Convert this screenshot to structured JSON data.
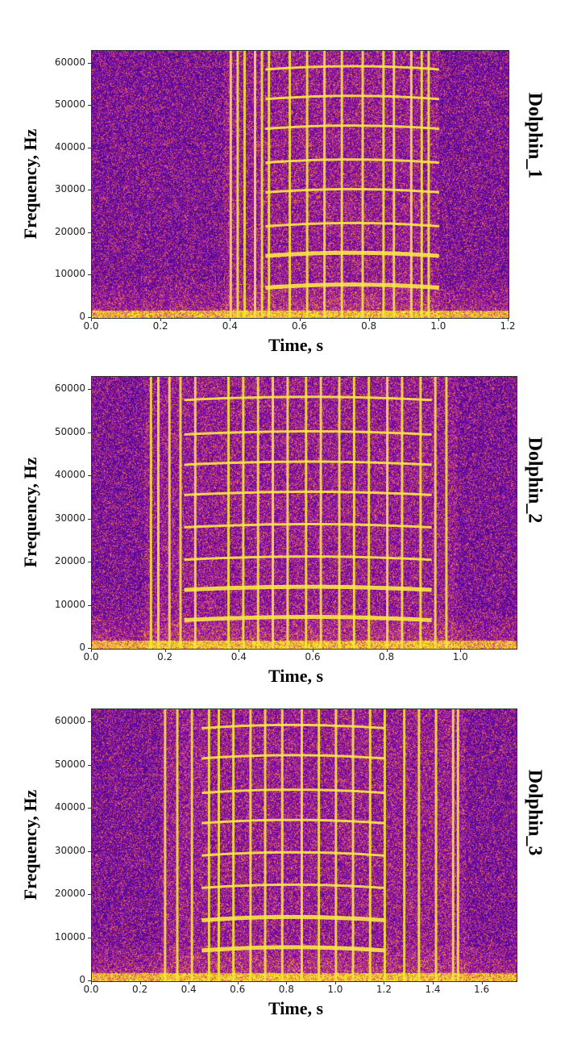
{
  "chart_data": [
    {
      "type": "heatmap",
      "title": "Dolphin_1",
      "xlabel": "Time, s",
      "ylabel": "Frequency, Hz",
      "xlim": [
        0,
        1.2
      ],
      "ylim": [
        0,
        63000
      ],
      "xticks": [
        "0.0",
        "0.2",
        "0.4",
        "0.6",
        "0.8",
        "1.0",
        "1.2"
      ],
      "yticks": [
        "0",
        "10000",
        "20000",
        "30000",
        "40000",
        "50000",
        "60000"
      ],
      "colormap": "plasma",
      "click_times": [
        0.4,
        0.42,
        0.44,
        0.47,
        0.49,
        0.51,
        0.57,
        0.62,
        0.67,
        0.72,
        0.78,
        0.84,
        0.87,
        0.92,
        0.95,
        0.97
      ],
      "harmonics_hz": [
        7500,
        15000,
        22000,
        30000,
        37000,
        45000,
        52000,
        59000
      ],
      "harmonic_span": [
        0.5,
        1.0
      ]
    },
    {
      "type": "heatmap",
      "title": "Dolphin_2",
      "xlabel": "Time, s",
      "ylabel": "Frequency, Hz",
      "xlim": [
        0,
        1.15
      ],
      "ylim": [
        0,
        63000
      ],
      "xticks": [
        "0.0",
        "0.2",
        "0.4",
        "0.6",
        "0.8",
        "1.0"
      ],
      "yticks": [
        "0",
        "10000",
        "20000",
        "30000",
        "40000",
        "50000",
        "60000"
      ],
      "colormap": "plasma",
      "click_times": [
        0.16,
        0.18,
        0.21,
        0.24,
        0.28,
        0.37,
        0.41,
        0.45,
        0.49,
        0.53,
        0.58,
        0.62,
        0.67,
        0.71,
        0.75,
        0.8,
        0.84,
        0.89,
        0.93,
        0.96
      ],
      "harmonics_hz": [
        7000,
        14000,
        21000,
        28500,
        36000,
        43000,
        50000,
        58000
      ],
      "harmonic_span": [
        0.25,
        0.92
      ]
    },
    {
      "type": "heatmap",
      "title": "Dolphin_3",
      "xlabel": "Time, s",
      "ylabel": "Frequency, Hz",
      "xlim": [
        0,
        1.74
      ],
      "ylim": [
        0,
        63000
      ],
      "xticks": [
        "0.0",
        "0.2",
        "0.4",
        "0.6",
        "0.8",
        "1.0",
        "1.2",
        "1.4",
        "1.6"
      ],
      "yticks": [
        "0",
        "10000",
        "20000",
        "30000",
        "40000",
        "50000",
        "60000"
      ],
      "colormap": "plasma",
      "click_times": [
        0.3,
        0.35,
        0.41,
        0.48,
        0.52,
        0.58,
        0.65,
        0.71,
        0.78,
        0.86,
        0.93,
        1.0,
        1.07,
        1.14,
        1.2,
        1.28,
        1.34,
        1.41,
        1.48,
        1.5
      ],
      "harmonics_hz": [
        7500,
        14500,
        22000,
        29500,
        37000,
        44000,
        52000,
        59000
      ],
      "harmonic_span": [
        0.45,
        1.2
      ]
    }
  ]
}
